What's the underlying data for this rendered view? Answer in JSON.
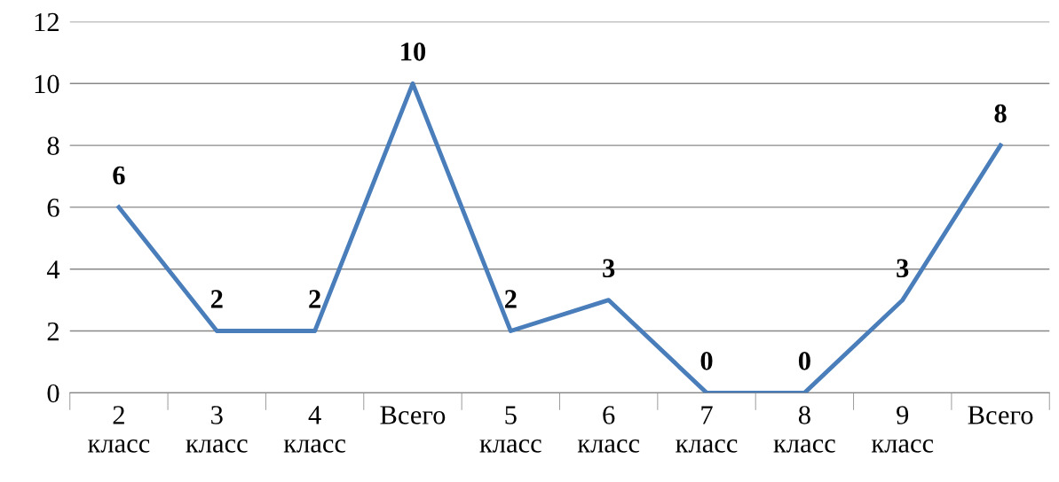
{
  "chart_data": {
    "type": "line",
    "categories": [
      "2\nкласс",
      "3\nкласс",
      "4\nкласс",
      "Всего",
      "5\nкласс",
      "6\nкласс",
      "7\nкласс",
      "8\nкласс",
      "9\nкласс",
      "Всего"
    ],
    "series": [
      {
        "color": "#4a7ebb",
        "values": [
          6,
          2,
          2,
          10,
          2,
          3,
          0,
          0,
          3,
          8
        ]
      }
    ],
    "ylim": [
      0,
      12
    ],
    "yticks": [
      0,
      2,
      4,
      6,
      8,
      10,
      12
    ],
    "grid": "y",
    "data_labels": true,
    "marker": "none",
    "line_style": "solid",
    "legend": false
  }
}
